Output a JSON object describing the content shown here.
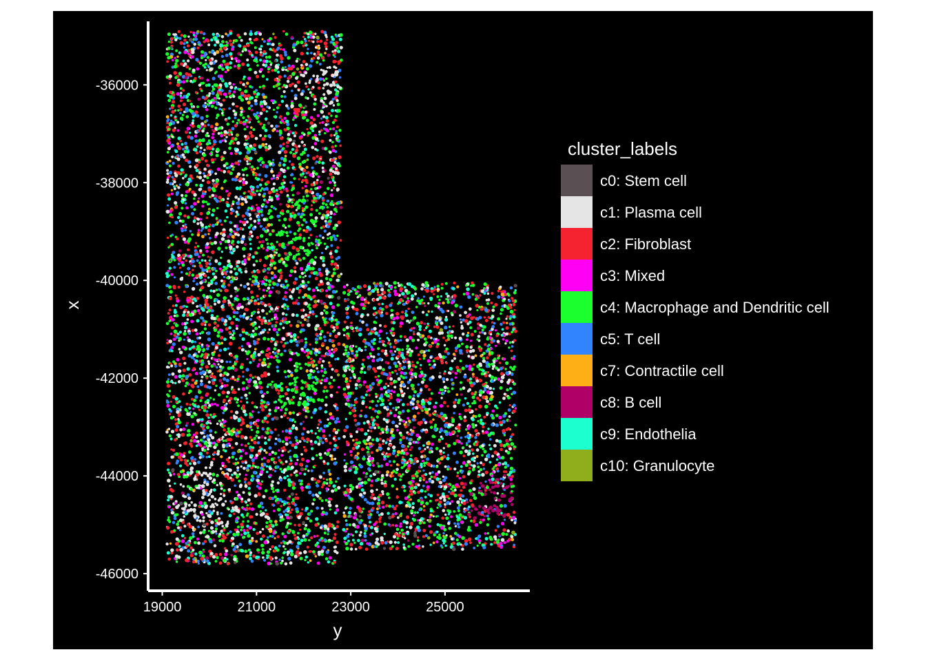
{
  "chart_data": {
    "type": "scatter",
    "title": "",
    "xlabel": "y",
    "ylabel": "x",
    "xlim": [
      18700,
      26800
    ],
    "ylim": [
      -46350,
      -34700
    ],
    "x_ticks": [
      19000,
      21000,
      23000,
      25000
    ],
    "x_tick_labels": [
      "19000",
      "21000",
      "23000",
      "25000"
    ],
    "y_ticks": [
      -36000,
      -38000,
      -40000,
      -42000,
      -44000,
      -46000
    ],
    "y_tick_labels": [
      "-36000",
      "-38000",
      "-40000",
      "-42000",
      "-44000",
      "-46000"
    ],
    "grid": false,
    "background": "#000000",
    "legend": {
      "title": "cluster_labels",
      "placement": "right",
      "entries": [
        {
          "label": "c0: Stem cell",
          "color": "#5a5054"
        },
        {
          "label": "c1: Plasma cell",
          "color": "#e5e5e5"
        },
        {
          "label": "c2: Fibroblast",
          "color": "#f5232f"
        },
        {
          "label": "c3: Mixed",
          "color": "#ff00f5"
        },
        {
          "label": "c4: Macrophage and Dendritic cell",
          "color": "#1cff2e"
        },
        {
          "label": "c5: T cell",
          "color": "#3283fe"
        },
        {
          "label": "c7: Contractile cell",
          "color": "#feaf16"
        },
        {
          "label": "c8: B cell",
          "color": "#b00068"
        },
        {
          "label": "c9: Endothelia",
          "color": "#1cffce"
        },
        {
          "label": "c10: Granulocyte",
          "color": "#90ad1c"
        }
      ]
    },
    "tissue_regions": [
      {
        "name": "upper-left",
        "y_range": [
          19100,
          22800
        ],
        "x_range": [
          -40250,
          -34900
        ]
      },
      {
        "name": "lower-left",
        "y_range": [
          19100,
          22750
        ],
        "x_range": [
          -45800,
          -40300
        ]
      },
      {
        "name": "lower-right",
        "y_range": [
          22850,
          26500
        ],
        "x_range": [
          -45500,
          -40050
        ]
      }
    ],
    "cluster_hotspots": [
      {
        "cluster": "c4: Macrophage and Dendritic cell",
        "y": 21900,
        "x": -39100,
        "radius": 900
      },
      {
        "cluster": "c4: Macrophage and Dendritic cell",
        "y": 21900,
        "x": -42200,
        "radius": 700
      },
      {
        "cluster": "c8: B cell",
        "y": 26000,
        "x": -44500,
        "radius": 600
      },
      {
        "cluster": "c1: Plasma cell",
        "y": 22400,
        "x": -36000,
        "radius": 500
      },
      {
        "cluster": "c1: Plasma cell",
        "y": 20000,
        "x": -44500,
        "radius": 800
      }
    ]
  }
}
